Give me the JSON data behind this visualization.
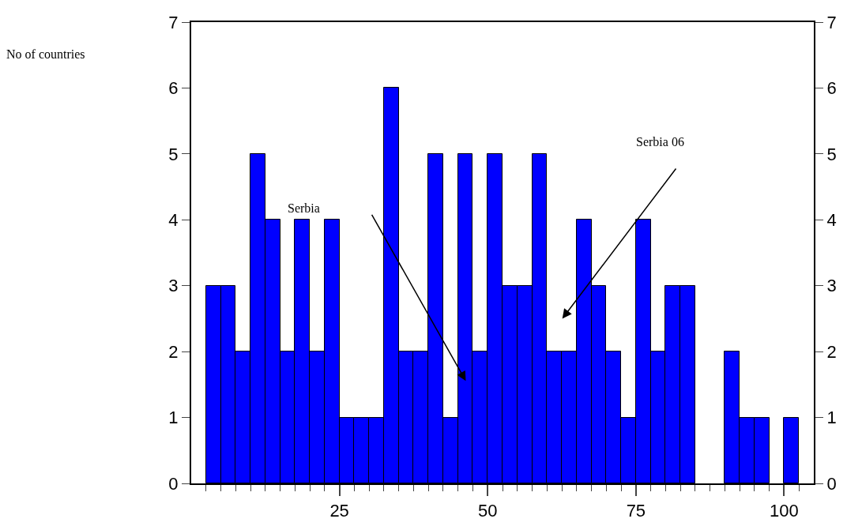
{
  "chart_data": {
    "type": "histogram",
    "bins": [
      2.5,
      5,
      7.5,
      10,
      12.5,
      15,
      17.5,
      20,
      22.5,
      25,
      27.5,
      30,
      32.5,
      35,
      37.5,
      40,
      42.5,
      45,
      47.5,
      50,
      52.5,
      55,
      57.5,
      60,
      62.5,
      65,
      67.5,
      70,
      72.5,
      75,
      77.5,
      80,
      82.5,
      85,
      87.5,
      90,
      92.5,
      95,
      97.5,
      100,
      102.5
    ],
    "values": [
      3,
      3,
      2,
      5,
      4,
      2,
      4,
      2,
      4,
      1,
      1,
      1,
      6,
      2,
      2,
      5,
      1,
      5,
      2,
      5,
      3,
      3,
      5,
      2,
      2,
      4,
      3,
      2,
      1,
      4,
      2,
      3,
      3,
      0,
      0,
      2,
      1,
      1,
      0,
      1
    ],
    "color": "#0000ff",
    "xlim": [
      0,
      105
    ],
    "xticks": [
      {
        "value": 2.5,
        "label": null
      },
      {
        "value": 5,
        "label": null
      },
      {
        "value": 7.5,
        "label": null
      },
      {
        "value": 10,
        "label": null
      },
      {
        "value": 12.5,
        "label": null
      },
      {
        "value": 15,
        "label": null
      },
      {
        "value": 17.5,
        "label": null
      },
      {
        "value": 20,
        "label": null
      },
      {
        "value": 22.5,
        "label": null
      },
      25,
      {
        "value": 27.5,
        "label": null
      },
      {
        "value": 30,
        "label": null
      },
      {
        "value": 32.5,
        "label": null
      },
      {
        "value": 35,
        "label": null
      },
      {
        "value": 37.5,
        "label": null
      },
      {
        "value": 40,
        "label": null
      },
      {
        "value": 42.5,
        "label": null
      },
      {
        "value": 45,
        "label": null
      },
      {
        "value": 47.5,
        "label": null
      },
      50,
      {
        "value": 52.5,
        "label": null
      },
      {
        "value": 55,
        "label": null
      },
      {
        "value": 57.5,
        "label": null
      },
      {
        "value": 60,
        "label": null
      },
      {
        "value": 62.5,
        "label": null
      },
      {
        "value": 65,
        "label": null
      },
      {
        "value": 67.5,
        "label": null
      },
      {
        "value": 70,
        "label": null
      },
      {
        "value": 72.5,
        "label": null
      },
      75,
      {
        "value": 77.5,
        "label": null
      },
      {
        "value": 80,
        "label": null
      },
      {
        "value": 82.5,
        "label": null
      },
      {
        "value": 85,
        "label": null
      },
      {
        "value": 87.5,
        "label": null
      },
      {
        "value": 90,
        "label": null
      },
      {
        "value": 92.5,
        "label": null
      },
      {
        "value": 95,
        "label": null
      },
      {
        "value": 97.5,
        "label": null
      },
      100,
      {
        "value": 102.5,
        "label": null
      }
    ],
    "ylim": [
      0,
      7
    ],
    "yticks": [
      0,
      1,
      2,
      3,
      4,
      5,
      6,
      7
    ],
    "y2lim": [
      0,
      7
    ],
    "y2ticks": [
      0,
      1,
      2,
      3,
      4,
      5,
      6,
      7
    ],
    "annotations": [
      "No of countries",
      "Serbia",
      "Serbia 06"
    ]
  }
}
